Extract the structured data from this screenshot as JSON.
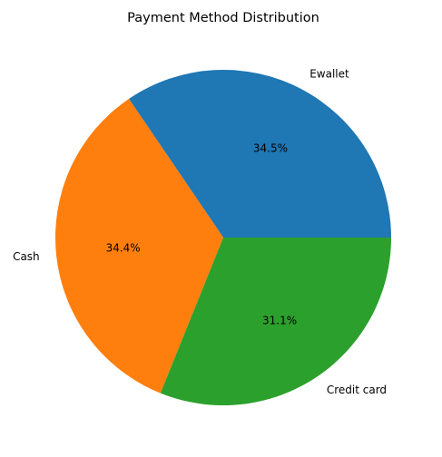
{
  "chart_data": {
    "type": "pie",
    "title": "Payment Method Distribution",
    "categories": [
      "Ewallet",
      "Cash",
      "Credit card"
    ],
    "values": [
      34.5,
      34.4,
      31.1
    ],
    "value_labels": [
      "34.5%",
      "34.4%",
      "31.1%"
    ],
    "colors": [
      "#1f77b4",
      "#ff7f0e",
      "#2ca02c"
    ],
    "start_angle_deg": 0,
    "direction": "counterclockwise",
    "legend": "none"
  }
}
